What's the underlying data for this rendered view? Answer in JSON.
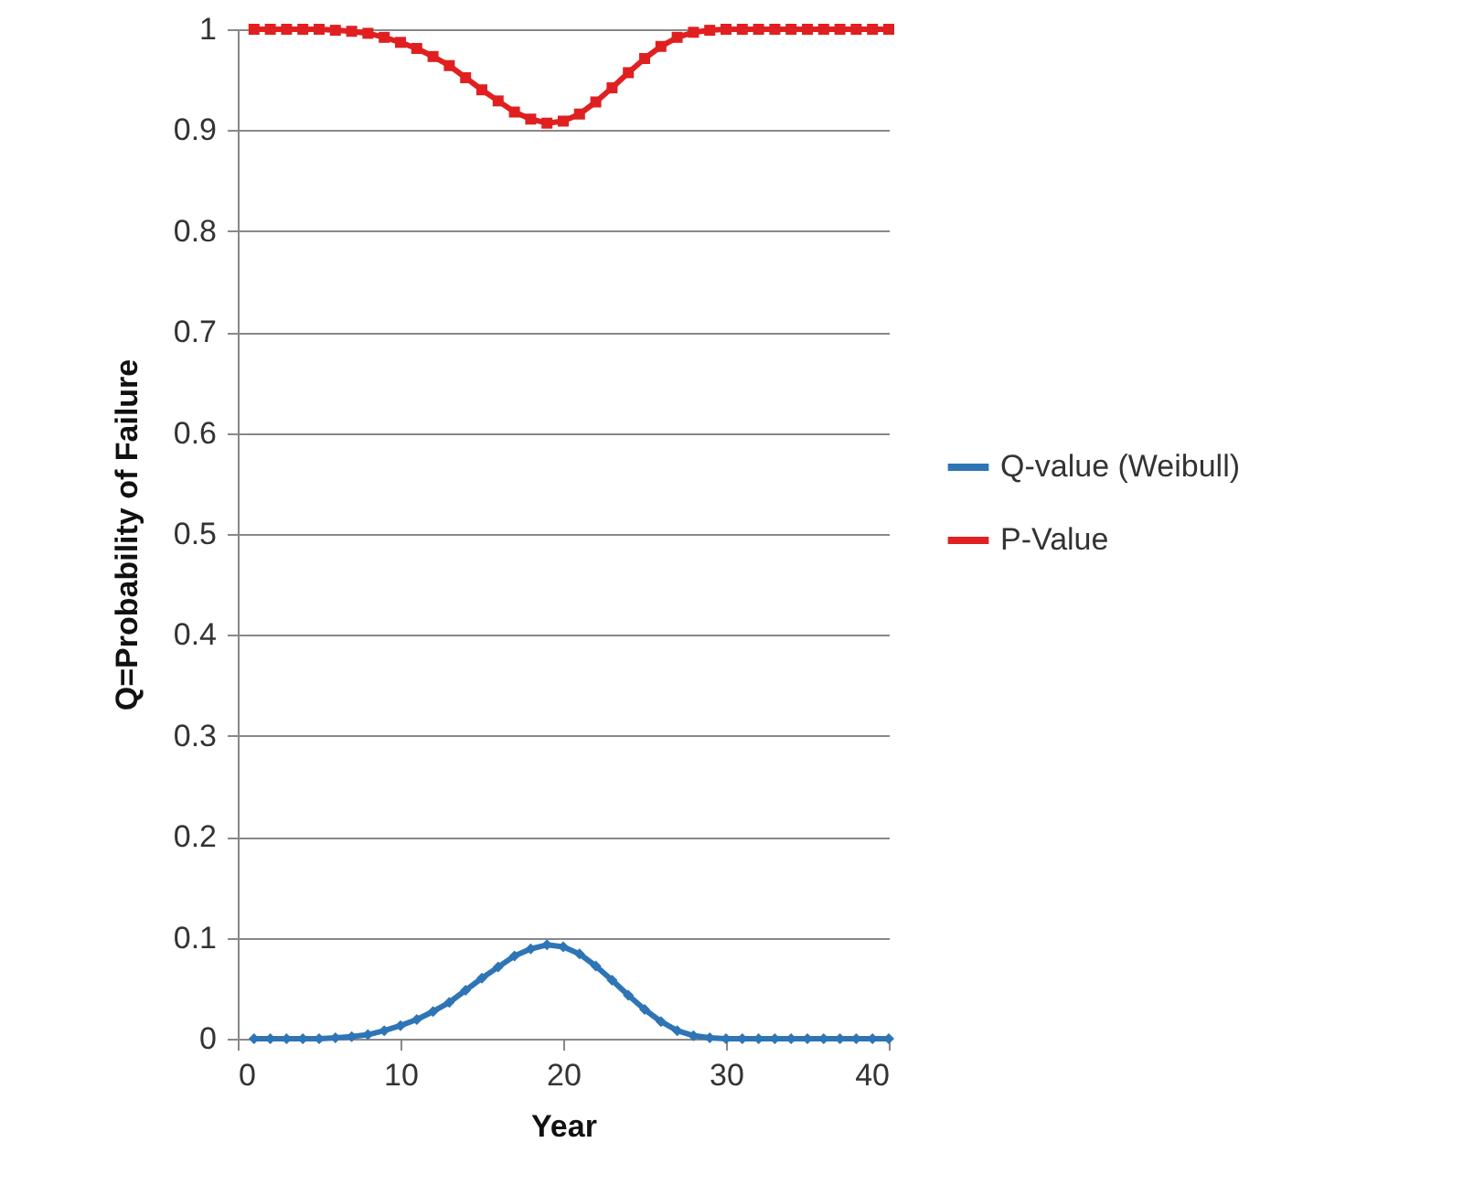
{
  "chart_data": {
    "type": "line",
    "xlabel": "Year",
    "ylabel": "Q=Probability of Failure",
    "x": [
      1,
      2,
      3,
      4,
      5,
      6,
      7,
      8,
      9,
      10,
      11,
      12,
      13,
      14,
      15,
      16,
      17,
      18,
      19,
      20,
      21,
      22,
      23,
      24,
      25,
      26,
      27,
      28,
      29,
      30,
      31,
      32,
      33,
      34,
      35,
      36,
      37,
      38,
      39,
      40
    ],
    "series": [
      {
        "name": "Q-value (Weibull)",
        "color": "#2e75b6",
        "marker": "diamond",
        "values": [
          0,
          0,
          0,
          0,
          0,
          0.001,
          0.002,
          0.004,
          0.008,
          0.013,
          0.019,
          0.027,
          0.036,
          0.048,
          0.06,
          0.071,
          0.082,
          0.089,
          0.093,
          0.091,
          0.084,
          0.072,
          0.058,
          0.043,
          0.029,
          0.017,
          0.008,
          0.003,
          0.001,
          0,
          0,
          0,
          0,
          0,
          0,
          0,
          0,
          0,
          0,
          0
        ]
      },
      {
        "name": "P-Value",
        "color": "#e02020",
        "marker": "square",
        "values": [
          1,
          1,
          1,
          1,
          1,
          0.999,
          0.998,
          0.996,
          0.992,
          0.987,
          0.981,
          0.973,
          0.964,
          0.952,
          0.94,
          0.929,
          0.918,
          0.911,
          0.907,
          0.909,
          0.916,
          0.928,
          0.942,
          0.957,
          0.971,
          0.983,
          0.992,
          0.997,
          0.999,
          1,
          1,
          1,
          1,
          1,
          1,
          1,
          1,
          1,
          1,
          1
        ]
      }
    ],
    "xlim": [
      0,
      40
    ],
    "xticks": [
      0,
      10,
      20,
      30,
      40
    ],
    "ylim": [
      0,
      1
    ],
    "yticks": [
      0,
      0.1,
      0.2,
      0.3,
      0.4,
      0.5,
      0.6,
      0.7,
      0.8,
      0.9,
      1
    ],
    "grid": "y",
    "legend": "right",
    "line_style": "solid"
  }
}
